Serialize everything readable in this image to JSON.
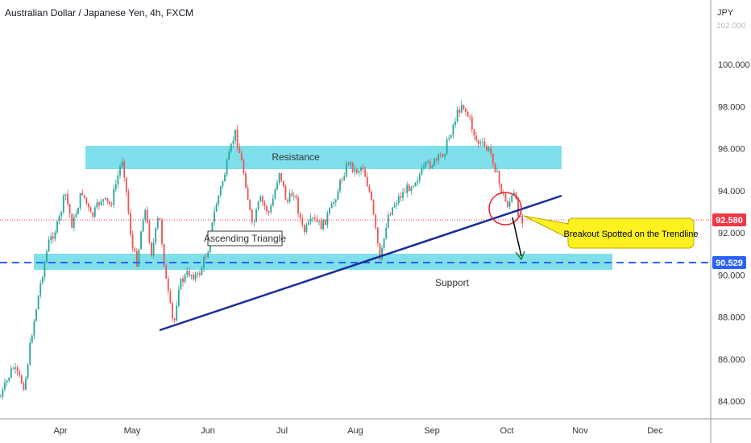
{
  "header": {
    "title": "Australian Dollar / Japanese Yen, 4h, FXCM"
  },
  "axis": {
    "currency_label": "JPY",
    "top_partial_label": "102.000"
  },
  "price_tags": {
    "last_price": "92.580",
    "support_price": "90.529",
    "last_color": "#f23645",
    "support_color": "#2962ff"
  },
  "annotations": {
    "resistance_label": "Resistance",
    "support_label": "Support",
    "pattern_label": "Ascending Triangle",
    "callout_text": "Breakout Spotted on the Trendline"
  },
  "colors": {
    "up": "#26a69a",
    "down": "#ef5350",
    "zone": "#7fdfea",
    "trendline": "#1a2f9a",
    "callout_bg": "#fff11f",
    "circle": "#e0202f"
  },
  "chart_data": {
    "type": "candlestick",
    "title": "Australian Dollar / Japanese Yen, 4h, FXCM",
    "x_ticks": [
      "Apr",
      "May",
      "Jun",
      "Jul",
      "Aug",
      "Sep",
      "Oct",
      "Nov",
      "Dec"
    ],
    "y_ticks": [
      "84.000",
      "86.000",
      "88.000",
      "90.000",
      "92.000",
      "94.000",
      "96.000",
      "98.000",
      "100.000"
    ],
    "ylim": [
      83.3,
      102.4
    ],
    "resistance_zone": [
      95.0,
      96.1
    ],
    "support_zone": [
      90.2,
      91.0
    ],
    "support_level": 90.529,
    "last_price": 92.58,
    "trendline": [
      {
        "date": "May 15",
        "price": 87.3
      },
      {
        "date": "Oct 22",
        "price": 93.7
      }
    ],
    "close_path": [
      {
        "date": "Mar 7",
        "price": 84.2
      },
      {
        "date": "Mar 12",
        "price": 85.6
      },
      {
        "date": "Mar 17",
        "price": 84.7
      },
      {
        "date": "Mar 20",
        "price": 87.2
      },
      {
        "date": "Mar 24",
        "price": 89.8
      },
      {
        "date": "Mar 27",
        "price": 91.5
      },
      {
        "date": "Mar 31",
        "price": 92.4
      },
      {
        "date": "Apr 3",
        "price": 93.9
      },
      {
        "date": "Apr 6",
        "price": 92.3
      },
      {
        "date": "Apr 10",
        "price": 94.0
      },
      {
        "date": "Apr 14",
        "price": 92.7
      },
      {
        "date": "Apr 18",
        "price": 93.6
      },
      {
        "date": "Apr 22",
        "price": 93.3
      },
      {
        "date": "Apr 27",
        "price": 95.6
      },
      {
        "date": "May 1",
        "price": 91.3
      },
      {
        "date": "May 3",
        "price": 90.6
      },
      {
        "date": "May 6",
        "price": 93.3
      },
      {
        "date": "May 9",
        "price": 91.0
      },
      {
        "date": "May 12",
        "price": 92.9
      },
      {
        "date": "May 15",
        "price": 89.6
      },
      {
        "date": "May 18",
        "price": 87.5
      },
      {
        "date": "May 20",
        "price": 89.5
      },
      {
        "date": "May 24",
        "price": 90.1
      },
      {
        "date": "May 28",
        "price": 89.9
      },
      {
        "date": "Jun 1",
        "price": 91.2
      },
      {
        "date": "Jun 4",
        "price": 93.2
      },
      {
        "date": "Jun 8",
        "price": 94.9
      },
      {
        "date": "Jun 12",
        "price": 96.8
      },
      {
        "date": "Jun 16",
        "price": 94.6
      },
      {
        "date": "Jun 19",
        "price": 92.2
      },
      {
        "date": "Jun 22",
        "price": 93.6
      },
      {
        "date": "Jun 26",
        "price": 92.9
      },
      {
        "date": "Jun 30",
        "price": 95.0
      },
      {
        "date": "Jul 3",
        "price": 93.4
      },
      {
        "date": "Jul 6",
        "price": 94.0
      },
      {
        "date": "Jul 10",
        "price": 92.0
      },
      {
        "date": "Jul 14",
        "price": 92.6
      },
      {
        "date": "Jul 18",
        "price": 92.3
      },
      {
        "date": "Jul 22",
        "price": 93.2
      },
      {
        "date": "Jul 26",
        "price": 94.5
      },
      {
        "date": "Jul 29",
        "price": 95.4
      },
      {
        "date": "Aug 1",
        "price": 94.9
      },
      {
        "date": "Aug 4",
        "price": 95.2
      },
      {
        "date": "Aug 7",
        "price": 93.8
      },
      {
        "date": "Aug 10",
        "price": 91.5
      },
      {
        "date": "Aug 11",
        "price": 90.5
      },
      {
        "date": "Aug 14",
        "price": 92.8
      },
      {
        "date": "Aug 18",
        "price": 93.6
      },
      {
        "date": "Aug 22",
        "price": 94.1
      },
      {
        "date": "Aug 26",
        "price": 94.6
      },
      {
        "date": "Aug 30",
        "price": 95.2
      },
      {
        "date": "Sep 3",
        "price": 95.4
      },
      {
        "date": "Sep 6",
        "price": 95.9
      },
      {
        "date": "Sep 10",
        "price": 97.3
      },
      {
        "date": "Sep 13",
        "price": 98.2
      },
      {
        "date": "Sep 16",
        "price": 97.4
      },
      {
        "date": "Sep 19",
        "price": 96.3
      },
      {
        "date": "Sep 22",
        "price": 96.1
      },
      {
        "date": "Sep 25",
        "price": 95.7
      },
      {
        "date": "Sep 28",
        "price": 94.3
      },
      {
        "date": "Oct 1",
        "price": 93.3
      },
      {
        "date": "Oct 4",
        "price": 93.8
      },
      {
        "date": "Oct 6",
        "price": 92.9
      },
      {
        "date": "Oct 8",
        "price": 92.6
      }
    ]
  }
}
